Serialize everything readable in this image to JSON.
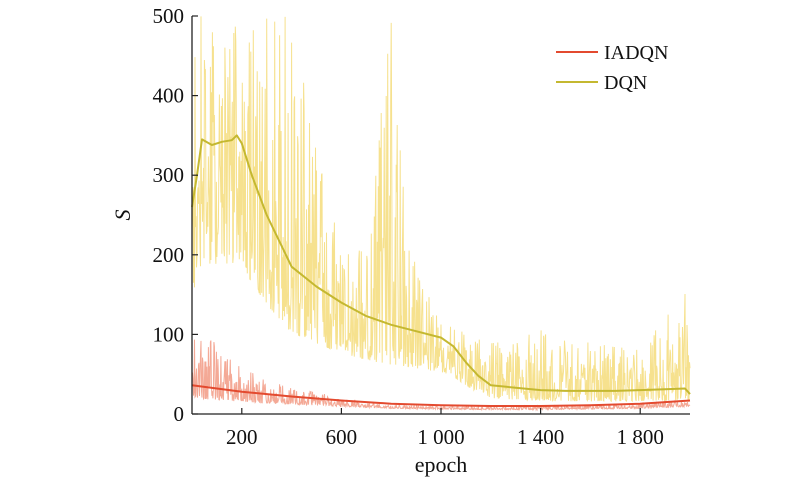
{
  "chart_data": {
    "type": "line",
    "title": "",
    "xlabel": "epoch",
    "ylabel": "S",
    "xlim": [
      0,
      2000
    ],
    "ylim": [
      0,
      500
    ],
    "x_ticks": [
      200,
      600,
      1000,
      1400,
      1800
    ],
    "x_tick_labels": [
      "200",
      "600",
      "1 000",
      "1 400",
      "1 800"
    ],
    "y_ticks": [
      0,
      100,
      200,
      300,
      400,
      500
    ],
    "y_tick_labels": [
      "0",
      "100",
      "200",
      "300",
      "400",
      "500"
    ],
    "grid": false,
    "legend_position": "top-right",
    "series": [
      {
        "name": "IADQN",
        "color": "#e34a2f",
        "raw_color": "#f29a84",
        "smoothed": {
          "x": [
            0,
            100,
            200,
            400,
            600,
            800,
            1000,
            1200,
            1400,
            1600,
            1800,
            2000
          ],
          "y": [
            36,
            32,
            28,
            22,
            17,
            13,
            11,
            10,
            10,
            11,
            13,
            17
          ]
        },
        "raw_envelope": {
          "x": [
            0,
            100,
            200,
            300,
            400,
            600,
            800,
            1000,
            1200,
            1400,
            1600,
            1800,
            2000
          ],
          "y": [
            100,
            90,
            60,
            45,
            35,
            20,
            12,
            10,
            10,
            10,
            12,
            14,
            20
          ]
        }
      },
      {
        "name": "DQN",
        "color": "#c4b830",
        "raw_color": "#f4dc7a",
        "smoothed": {
          "x": [
            0,
            20,
            40,
            80,
            120,
            160,
            180,
            200,
            240,
            300,
            400,
            500,
            600,
            700,
            800,
            900,
            1000,
            1050,
            1100,
            1150,
            1200,
            1300,
            1400,
            1500,
            1600,
            1700,
            1800,
            1900,
            1980,
            2000
          ],
          "y": [
            260,
            300,
            345,
            338,
            342,
            344,
            350,
            340,
            300,
            250,
            185,
            160,
            140,
            123,
            112,
            104,
            96,
            85,
            65,
            48,
            36,
            33,
            30,
            29,
            29,
            29,
            30,
            31,
            32,
            25
          ]
        },
        "raw_envelope": {
          "x": [
            0,
            100,
            200,
            300,
            400,
            500,
            600,
            700,
            800,
            900,
            1000,
            1200,
            1400,
            1600,
            1800,
            1980,
            2000
          ],
          "y": [
            500,
            500,
            500,
            500,
            500,
            350,
            200,
            220,
            500,
            180,
            120,
            90,
            110,
            90,
            80,
            160,
            60
          ]
        }
      }
    ]
  }
}
